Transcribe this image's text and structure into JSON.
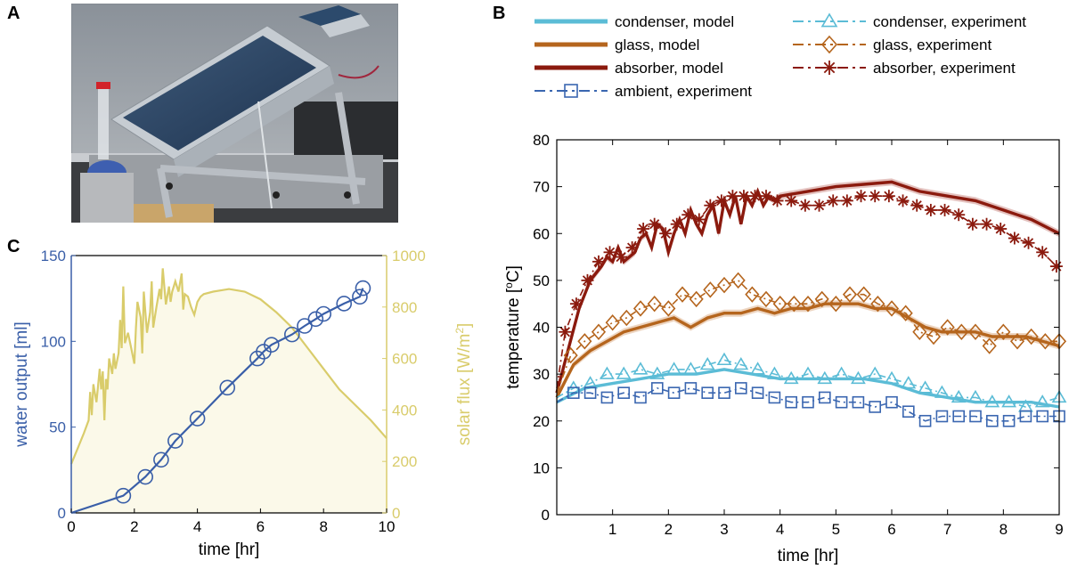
{
  "panels": {
    "A": "A",
    "B": "B",
    "C": "C"
  },
  "chart_data": [
    {
      "id": "C",
      "type": "line",
      "xlabel": "time [hr]",
      "ylabel_left": "water output [ml]",
      "ylabel_right": "solar flux [W/m",
      "ylabel_right_sup": "2",
      "ylabel_right_close": "]",
      "xlim": [
        0,
        10
      ],
      "ylim_left": [
        0,
        150
      ],
      "ylim_right": [
        0,
        1000
      ],
      "xticks": [
        0,
        2,
        4,
        6,
        8,
        10
      ],
      "yticks_left": [
        0,
        50,
        100,
        150
      ],
      "yticks_right": [
        0,
        200,
        400,
        600,
        800,
        1000
      ],
      "colors": {
        "water": "#3a5fa8",
        "solar": "#d9cc6b",
        "solar_fill": "#fbf9e9"
      },
      "series": [
        {
          "key": "water",
          "axis": "left",
          "x": [
            0,
            1.65,
            2.35,
            2.85,
            3.3,
            4.0,
            4.95,
            5.9,
            6.1,
            6.35,
            7.0,
            7.4,
            7.75,
            8.0,
            8.65,
            9.15,
            9.25
          ],
          "y": [
            0,
            10,
            21,
            31,
            42,
            55,
            73,
            90,
            94,
            98,
            104,
            109,
            113,
            116,
            122,
            126,
            131
          ]
        },
        {
          "key": "solar",
          "axis": "right",
          "x": [
            0,
            0.2,
            0.4,
            0.55,
            0.6,
            0.65,
            0.7,
            0.8,
            0.9,
            0.95,
            1.0,
            1.05,
            1.1,
            1.15,
            1.2,
            1.3,
            1.35,
            1.4,
            1.5,
            1.55,
            1.6,
            1.65,
            1.7,
            1.8,
            1.9,
            2.0,
            2.05,
            2.1,
            2.2,
            2.25,
            2.3,
            2.4,
            2.5,
            2.55,
            2.6,
            2.7,
            2.8,
            2.85,
            2.9,
            3.0,
            3.1,
            3.15,
            3.2,
            3.3,
            3.4,
            3.5,
            3.55,
            3.6,
            3.7,
            3.8,
            3.9,
            4.0,
            4.1,
            4.2,
            4.5,
            5.0,
            5.5,
            6.0,
            6.5,
            7.0,
            7.5,
            8.0,
            8.5,
            9.0,
            9.5,
            10.0
          ],
          "y": [
            190,
            250,
            310,
            360,
            470,
            380,
            500,
            430,
            560,
            480,
            550,
            360,
            520,
            480,
            600,
            540,
            620,
            560,
            620,
            750,
            640,
            880,
            660,
            700,
            640,
            580,
            720,
            820,
            760,
            620,
            860,
            700,
            780,
            900,
            720,
            800,
            870,
            830,
            950,
            810,
            880,
            820,
            860,
            900,
            860,
            930,
            790,
            850,
            840,
            800,
            770,
            820,
            840,
            850,
            860,
            870,
            860,
            830,
            780,
            720,
            640,
            560,
            480,
            420,
            360,
            290
          ]
        }
      ],
      "markers": {
        "water": "circle"
      }
    },
    {
      "id": "B",
      "type": "line",
      "xlabel": "time [hr]",
      "ylabel": "temperature [",
      "ylabel_sup": "o",
      "ylabel_end": "C]",
      "xlim": [
        0,
        9
      ],
      "ylim": [
        0,
        80
      ],
      "xticks": [
        1,
        2,
        3,
        4,
        5,
        6,
        7,
        8,
        9
      ],
      "yticks": [
        0,
        10,
        20,
        30,
        40,
        50,
        60,
        70,
        80
      ],
      "legend": [
        {
          "label": "condenser, model",
          "color": "#5bbcd6",
          "style": "model"
        },
        {
          "label": "condenser, experiment",
          "color": "#5bbcd6",
          "style": "exp",
          "marker": "triangle"
        },
        {
          "label": "glass, model",
          "color": "#b5651d",
          "style": "model"
        },
        {
          "label": "glass, experiment",
          "color": "#b5651d",
          "style": "exp",
          "marker": "diamond"
        },
        {
          "label": "absorber, model",
          "color": "#8b1a0e",
          "style": "model"
        },
        {
          "label": "absorber, experiment",
          "color": "#8b1a0e",
          "style": "exp",
          "marker": "asterisk"
        },
        {
          "label": "ambient, experiment",
          "color": "#3a66b0",
          "style": "exp",
          "marker": "square"
        }
      ],
      "series": [
        {
          "key": "absorber_model",
          "color": "#8b1a0e",
          "band": "#d9a8a4",
          "marker": "none",
          "dashed": false,
          "x": [
            0,
            0.2,
            0.4,
            0.6,
            0.8,
            0.9,
            1.0,
            1.1,
            1.2,
            1.3,
            1.4,
            1.5,
            1.6,
            1.7,
            1.8,
            1.9,
            2.0,
            2.1,
            2.2,
            2.3,
            2.4,
            2.5,
            2.6,
            2.7,
            2.8,
            2.9,
            3.0,
            3.1,
            3.2,
            3.3,
            3.4,
            3.5,
            3.6,
            3.7,
            3.8,
            3.9,
            4.0,
            4.5,
            5.0,
            5.5,
            6.0,
            6.5,
            7.0,
            7.5,
            8.0,
            8.5,
            9.0
          ],
          "y": [
            26,
            35,
            44,
            50,
            53,
            55,
            54,
            57,
            54,
            55,
            56,
            59,
            60,
            57,
            62,
            61,
            56,
            60,
            63,
            60,
            65,
            62,
            60,
            64,
            66,
            60,
            67,
            64,
            68,
            62,
            68,
            66,
            69,
            66,
            68,
            67,
            68,
            69,
            70,
            70.5,
            71,
            69,
            68,
            67,
            65,
            63,
            60
          ]
        },
        {
          "key": "absorber_exp",
          "color": "#8b1a0e",
          "marker": "asterisk",
          "dashed": true,
          "x": [
            0,
            0.15,
            0.35,
            0.55,
            0.75,
            0.95,
            1.15,
            1.35,
            1.55,
            1.75,
            1.95,
            2.15,
            2.35,
            2.55,
            2.75,
            2.95,
            3.15,
            3.35,
            3.55,
            3.75,
            3.95,
            4.2,
            4.45,
            4.7,
            4.95,
            5.2,
            5.45,
            5.7,
            5.95,
            6.2,
            6.45,
            6.7,
            6.95,
            7.2,
            7.45,
            7.7,
            7.95,
            8.2,
            8.45,
            8.7,
            8.95
          ],
          "y": [
            27,
            39,
            45,
            50,
            54,
            56,
            55,
            57,
            61,
            62,
            60,
            62,
            64,
            63,
            66,
            67,
            68,
            68,
            68,
            68,
            67,
            67,
            66,
            66,
            67,
            67,
            68,
            68,
            68,
            67,
            66,
            65,
            65,
            64,
            62,
            62,
            61,
            59,
            58,
            56,
            53
          ]
        },
        {
          "key": "glass_model",
          "color": "#b5651d",
          "band": "#e6c3a6",
          "marker": "none",
          "dashed": false,
          "x": [
            0,
            0.3,
            0.6,
            0.9,
            1.2,
            1.5,
            1.8,
            2.1,
            2.4,
            2.7,
            3.0,
            3.3,
            3.6,
            3.9,
            4.2,
            4.5,
            4.8,
            5.1,
            5.4,
            5.7,
            6.0,
            6.3,
            6.6,
            6.9,
            7.2,
            7.5,
            7.8,
            8.1,
            8.4,
            8.7,
            9.0
          ],
          "y": [
            25,
            32,
            35,
            37,
            39,
            40,
            41,
            42,
            40,
            42,
            43,
            43,
            44,
            43,
            44,
            44,
            45,
            45,
            45,
            44,
            44,
            42,
            40,
            39,
            39,
            39,
            38,
            38,
            38,
            37,
            36
          ]
        },
        {
          "key": "glass_exp",
          "color": "#b5651d",
          "marker": "diamond",
          "dashed": true,
          "x": [
            0,
            0.25,
            0.5,
            0.75,
            1.0,
            1.25,
            1.5,
            1.75,
            2.0,
            2.25,
            2.5,
            2.75,
            3.0,
            3.25,
            3.5,
            3.75,
            4.0,
            4.25,
            4.5,
            4.75,
            5.0,
            5.25,
            5.5,
            5.75,
            6.0,
            6.25,
            6.5,
            6.75,
            7.0,
            7.25,
            7.5,
            7.75,
            8.0,
            8.25,
            8.5,
            8.75,
            9.0
          ],
          "y": [
            26,
            34,
            37,
            39,
            41,
            42,
            44,
            45,
            44,
            47,
            46,
            48,
            49,
            50,
            47,
            46,
            45,
            45,
            45,
            46,
            45,
            47,
            47,
            45,
            44,
            43,
            39,
            38,
            40,
            39,
            39,
            36,
            39,
            37,
            38,
            37,
            37
          ]
        },
        {
          "key": "condenser_model",
          "color": "#5bbcd6",
          "marker": "none",
          "dashed": false,
          "x": [
            0,
            0.5,
            1.0,
            1.5,
            2.0,
            2.5,
            3.0,
            3.5,
            4.0,
            4.5,
            5.0,
            5.5,
            6.0,
            6.5,
            7.0,
            7.5,
            8.0,
            8.5,
            9.0
          ],
          "y": [
            24,
            27,
            28,
            29,
            30,
            30,
            31,
            30,
            29,
            29,
            29,
            29,
            28,
            26,
            25,
            24,
            24,
            24,
            23
          ]
        },
        {
          "key": "condenser_exp",
          "color": "#5bbcd6",
          "marker": "triangle",
          "dashed": true,
          "x": [
            0,
            0.3,
            0.6,
            0.9,
            1.2,
            1.5,
            1.8,
            2.1,
            2.4,
            2.7,
            3.0,
            3.3,
            3.6,
            3.9,
            4.2,
            4.5,
            4.8,
            5.1,
            5.4,
            5.7,
            6.0,
            6.3,
            6.6,
            6.9,
            7.2,
            7.5,
            7.8,
            8.1,
            8.4,
            8.7,
            9.0
          ],
          "y": [
            25,
            27,
            28,
            30,
            30,
            31,
            30,
            31,
            31,
            32,
            33,
            32,
            31,
            30,
            29,
            30,
            29,
            30,
            29,
            30,
            29,
            28,
            27,
            26,
            25,
            25,
            24,
            24,
            23,
            24,
            25
          ]
        },
        {
          "key": "ambient_exp",
          "color": "#3a66b0",
          "marker": "square",
          "dashed": true,
          "x": [
            0,
            0.3,
            0.6,
            0.9,
            1.2,
            1.5,
            1.8,
            2.1,
            2.4,
            2.7,
            3.0,
            3.3,
            3.6,
            3.9,
            4.2,
            4.5,
            4.8,
            5.1,
            5.4,
            5.7,
            6.0,
            6.3,
            6.6,
            6.9,
            7.2,
            7.5,
            7.8,
            8.1,
            8.4,
            8.7,
            9.0
          ],
          "y": [
            24,
            26,
            26,
            25,
            26,
            25,
            27,
            26,
            27,
            26,
            26,
            27,
            26,
            25,
            24,
            24,
            25,
            24,
            24,
            23,
            24,
            22,
            20,
            21,
            21,
            21,
            20,
            20,
            21,
            21,
            21
          ]
        }
      ]
    }
  ]
}
